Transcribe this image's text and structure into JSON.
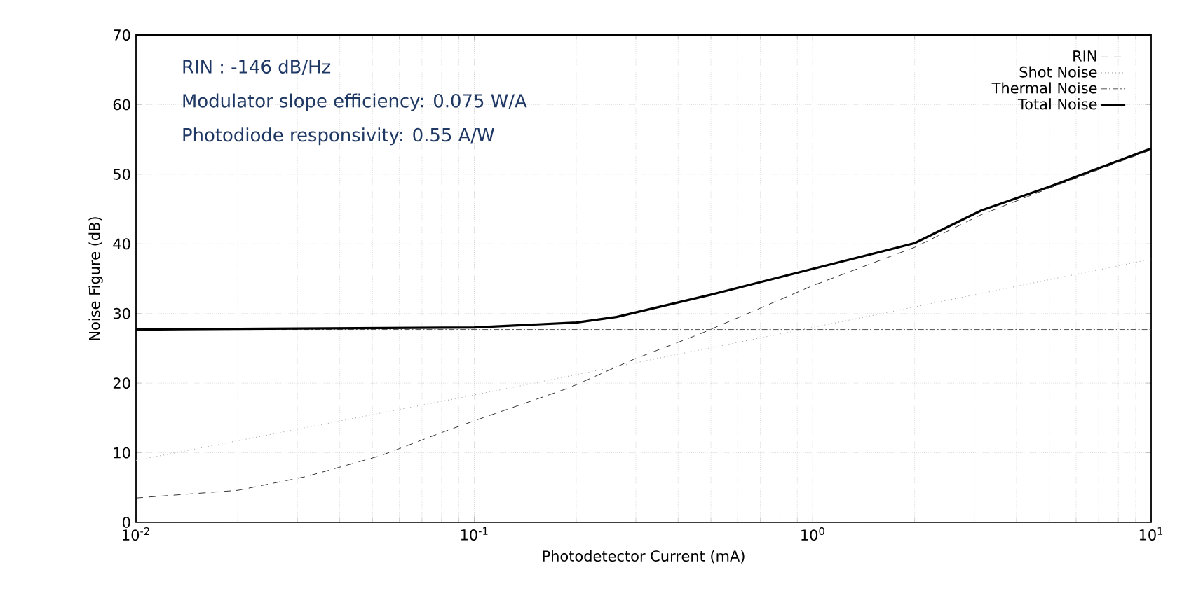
{
  "chart_data": {
    "type": "line",
    "xlabel": "Photodetector Current (mA)",
    "ylabel": "Noise Figure (dB)",
    "annotations": [
      "RIN : -146 dB/Hz",
      "Modulator slope efficiency: 0.075 W/A",
      "Photodiode responsivity: 0.55 A/W"
    ],
    "log": "x",
    "grid": true,
    "legend": "top right",
    "xlim": [
      0.01,
      10
    ],
    "ylim": [
      0,
      70
    ],
    "xticks": [
      {
        "value": 0.01,
        "label": "10$^{-2}$"
      },
      {
        "value": 0.1,
        "label": "10$^{-1}$"
      },
      {
        "value": 1,
        "label": "10$^{0}$"
      },
      {
        "value": 10,
        "label": "10$^{1}$"
      }
    ],
    "yticks": [
      0,
      10,
      20,
      30,
      40,
      50,
      60,
      70
    ],
    "series": [
      {
        "name": "RIN",
        "color": "#000000",
        "line_style": "dashed",
        "x": [
          0.01,
          0.02,
          0.032,
          0.053,
          0.081,
          0.1,
          0.19,
          0.295,
          0.466,
          1,
          2,
          3.15,
          5,
          10
        ],
        "values": [
          3.5,
          4.6,
          6.6,
          9.6,
          13,
          14.6,
          19.3,
          23.4,
          27.1,
          34,
          39.5,
          44.2,
          48,
          53.5
        ]
      },
      {
        "name": "Shot Noise",
        "color": "#999999",
        "line_style": "dotted",
        "x": [
          0.01,
          0.1,
          1,
          10
        ],
        "values": [
          8.9,
          18.3,
          28,
          37.8
        ]
      },
      {
        "name": "Thermal Noise",
        "color": "#555555",
        "line_style": "dashdot",
        "x": [
          0.01,
          10
        ],
        "values": [
          27.7,
          27.7
        ]
      },
      {
        "name": "Total Noise",
        "color": "#000000",
        "line_style": "solid",
        "x": [
          0.01,
          0.1,
          0.2,
          0.263,
          0.5,
          1,
          2,
          3.15,
          5,
          10
        ],
        "values": [
          27.7,
          28,
          28.7,
          29.5,
          32.7,
          36.4,
          40.1,
          44.8,
          48.2,
          53.7
        ]
      }
    ]
  }
}
